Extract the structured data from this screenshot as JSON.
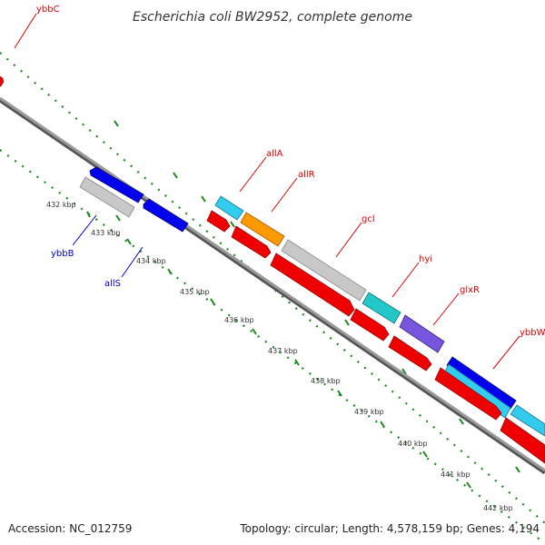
{
  "title": "Escherichia coli BW2952, complete genome",
  "footer": {
    "accession": "Accession: NC_012759",
    "summary": "Topology: circular; Length: 4,578,159 bp; Genes: 4,194"
  },
  "colors": {
    "backbone": "#888888",
    "ruler": "#1a8a1a",
    "label_forward": "#dd0000",
    "label_reverse": "#0000cc"
  },
  "ticks": [
    {
      "label": "432 kbp"
    },
    {
      "label": "433 kbp"
    },
    {
      "label": "434 kbp"
    },
    {
      "label": "435 kbp"
    },
    {
      "label": "436 kbp"
    },
    {
      "label": "437 kbp"
    },
    {
      "label": "438 kbp"
    },
    {
      "label": "439 kbp"
    },
    {
      "label": "440 kbp"
    },
    {
      "label": "441 kbp"
    },
    {
      "label": "442 kbp"
    }
  ],
  "gene_labels": [
    {
      "name": "ybbC",
      "strand": "forward"
    },
    {
      "name": "allA",
      "strand": "forward"
    },
    {
      "name": "allR",
      "strand": "forward"
    },
    {
      "name": "gcl",
      "strand": "forward"
    },
    {
      "name": "hyi",
      "strand": "forward"
    },
    {
      "name": "glxR",
      "strand": "forward"
    },
    {
      "name": "ybbW",
      "strand": "forward"
    },
    {
      "name": "ybbB",
      "strand": "reverse"
    },
    {
      "name": "allS",
      "strand": "reverse"
    }
  ]
}
